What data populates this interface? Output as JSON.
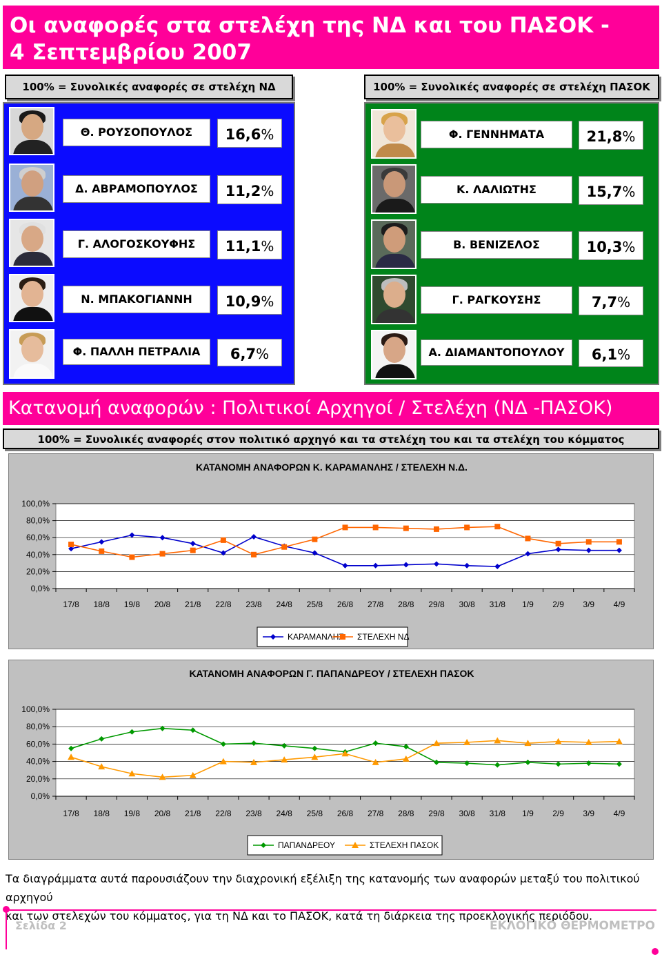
{
  "header": {
    "title_line1": "Οι αναφορές στα στελέχη της ΝΔ και του ΠΑΣΟΚ -",
    "title_line2": "4 Σεπτεμβρίου 2007"
  },
  "nd": {
    "header": "100% = Συνολικές αναφορές σε στελέχη ΝΔ",
    "color": "#0b0bff",
    "people": [
      {
        "name": "Θ. ΡΟΥΣΟΠΟΥΛΟΣ",
        "value": "16,6",
        "unit": "%"
      },
      {
        "name": "Δ. ΑΒΡΑΜΟΠΟΥΛΟΣ",
        "value": "11,2",
        "unit": "%"
      },
      {
        "name": "Γ. ΑΛΟΓΟΣΚΟΥΦΗΣ",
        "value": "11,1",
        "unit": "%"
      },
      {
        "name": "Ν. ΜΠΑΚΟΓΙΑΝΝΗ",
        "value": "10,9",
        "unit": "%"
      },
      {
        "name": "Φ. ΠΑΛΛΗ ΠΕΤΡΑΛΙΑ",
        "value": "6,7",
        "unit": "%"
      }
    ]
  },
  "pasok": {
    "header": "100% = Συνολικές αναφορές σε στελέχη ΠΑΣΟΚ",
    "color": "#00841a",
    "people": [
      {
        "name": "Φ. ΓΕΝΝΗΜΑΤΑ",
        "value": "21,8",
        "unit": "%"
      },
      {
        "name": "Κ. ΛΑΛΙΩΤΗΣ",
        "value": "15,7",
        "unit": "%"
      },
      {
        "name": "Β. ΒΕΝΙΖΕΛΟΣ",
        "value": "10,3",
        "unit": "%"
      },
      {
        "name": "Γ. ΡΑΓΚΟΥΣΗΣ",
        "value": "7,7",
        "unit": "%"
      },
      {
        "name": "Α. ΔΙΑΜΑΝΤΟΠΟΥΛΟΥ",
        "value": "6,1",
        "unit": "%"
      }
    ]
  },
  "section": {
    "title": "Κατανομή αναφορών : Πολιτικοί Αρχηγοί / Στελέχη (ΝΔ -ΠΑΣΟΚ)",
    "subtitle": "100% = Συνολικές αναφορές στον πολιτικό αρχηγό και τα στελέχη του και τα στελέχη του κόμματος"
  },
  "chart_data": [
    {
      "type": "line",
      "title": "ΚΑΤΑΝΟΜΗ ΑΝΑΦΟΡΩΝ Κ. ΚΑΡΑΜΑΝΛΗΣ / ΣΤΕΛΕΧΗ Ν.Δ.",
      "categories": [
        "17/8",
        "18/8",
        "19/8",
        "20/8",
        "21/8",
        "22/8",
        "23/8",
        "24/8",
        "25/8",
        "26/8",
        "27/8",
        "28/8",
        "29/8",
        "30/8",
        "31/8",
        "1/9",
        "2/9",
        "3/9",
        "4/9"
      ],
      "y_ticks": [
        "100,0%",
        "80,0%",
        "60,0%",
        "40,0%",
        "20,0%",
        "0,0%"
      ],
      "ylim": [
        0,
        100
      ],
      "grid": true,
      "legend_position": "bottom",
      "series": [
        {
          "name": "ΚΑΡΑΜΑΝΛΗΣ",
          "color": "#0000cc",
          "marker": "diamond",
          "values": [
            47,
            55,
            63,
            60,
            53,
            42,
            61,
            50,
            42,
            27,
            27,
            28,
            29,
            27,
            26,
            41,
            46,
            45,
            45
          ]
        },
        {
          "name": "ΣΤΕΛΕΧΗ ΝΔ",
          "color": "#ff6600",
          "marker": "square",
          "values": [
            52,
            44,
            37,
            41,
            45,
            57,
            40,
            49,
            58,
            72,
            72,
            71,
            70,
            72,
            73,
            59,
            53,
            55,
            55
          ]
        }
      ]
    },
    {
      "type": "line",
      "title": "ΚΑΤΑΝΟΜΗ ΑΝΑΦΟΡΩΝ Γ. ΠΑΠΑΝΔΡΕΟΥ / ΣΤΕΛΕΧΗ ΠΑΣΟΚ",
      "categories": [
        "17/8",
        "18/8",
        "19/8",
        "20/8",
        "21/8",
        "22/8",
        "23/8",
        "24/8",
        "25/8",
        "26/8",
        "27/8",
        "28/8",
        "29/8",
        "30/8",
        "31/8",
        "1/9",
        "2/9",
        "3/9",
        "4/9"
      ],
      "y_ticks": [
        "100,0%",
        "80,0%",
        "60,0%",
        "40,0%",
        "20,0%",
        "0,0%"
      ],
      "ylim": [
        0,
        100
      ],
      "grid": true,
      "legend_position": "bottom",
      "series": [
        {
          "name": "ΠΑΠΑΝΔΡΕΟΥ",
          "color": "#009900",
          "marker": "diamond",
          "values": [
            55,
            66,
            74,
            78,
            76,
            60,
            61,
            58,
            55,
            51,
            61,
            57,
            39,
            38,
            36,
            39,
            37,
            38,
            37
          ]
        },
        {
          "name": "ΣΤΕΛΕΧΗ ΠΑΣΟΚ",
          "color": "#ff9900",
          "marker": "triangle",
          "values": [
            45,
            34,
            26,
            22,
            24,
            40,
            39,
            42,
            45,
            49,
            39,
            43,
            61,
            62,
            64,
            61,
            63,
            62,
            63
          ]
        }
      ]
    }
  ],
  "caption": {
    "line1": "Τα διαγράμματα αυτά παρουσιάζουν την διαχρονική εξέλιξη της κατανομής των αναφορών μεταξύ του πολιτικού αρχηγού",
    "line2": "και των στελεχών του κόμματος, για τη ΝΔ και το ΠΑΣΟΚ, κατά τη διάρκεια της προεκλογικής περιόδου."
  },
  "footer": {
    "page": "Σελίδα 2",
    "brand": "ΕΚΛΟΓΙΚΟ ΘΕΡΜΟΜΕΤΡΟ"
  }
}
